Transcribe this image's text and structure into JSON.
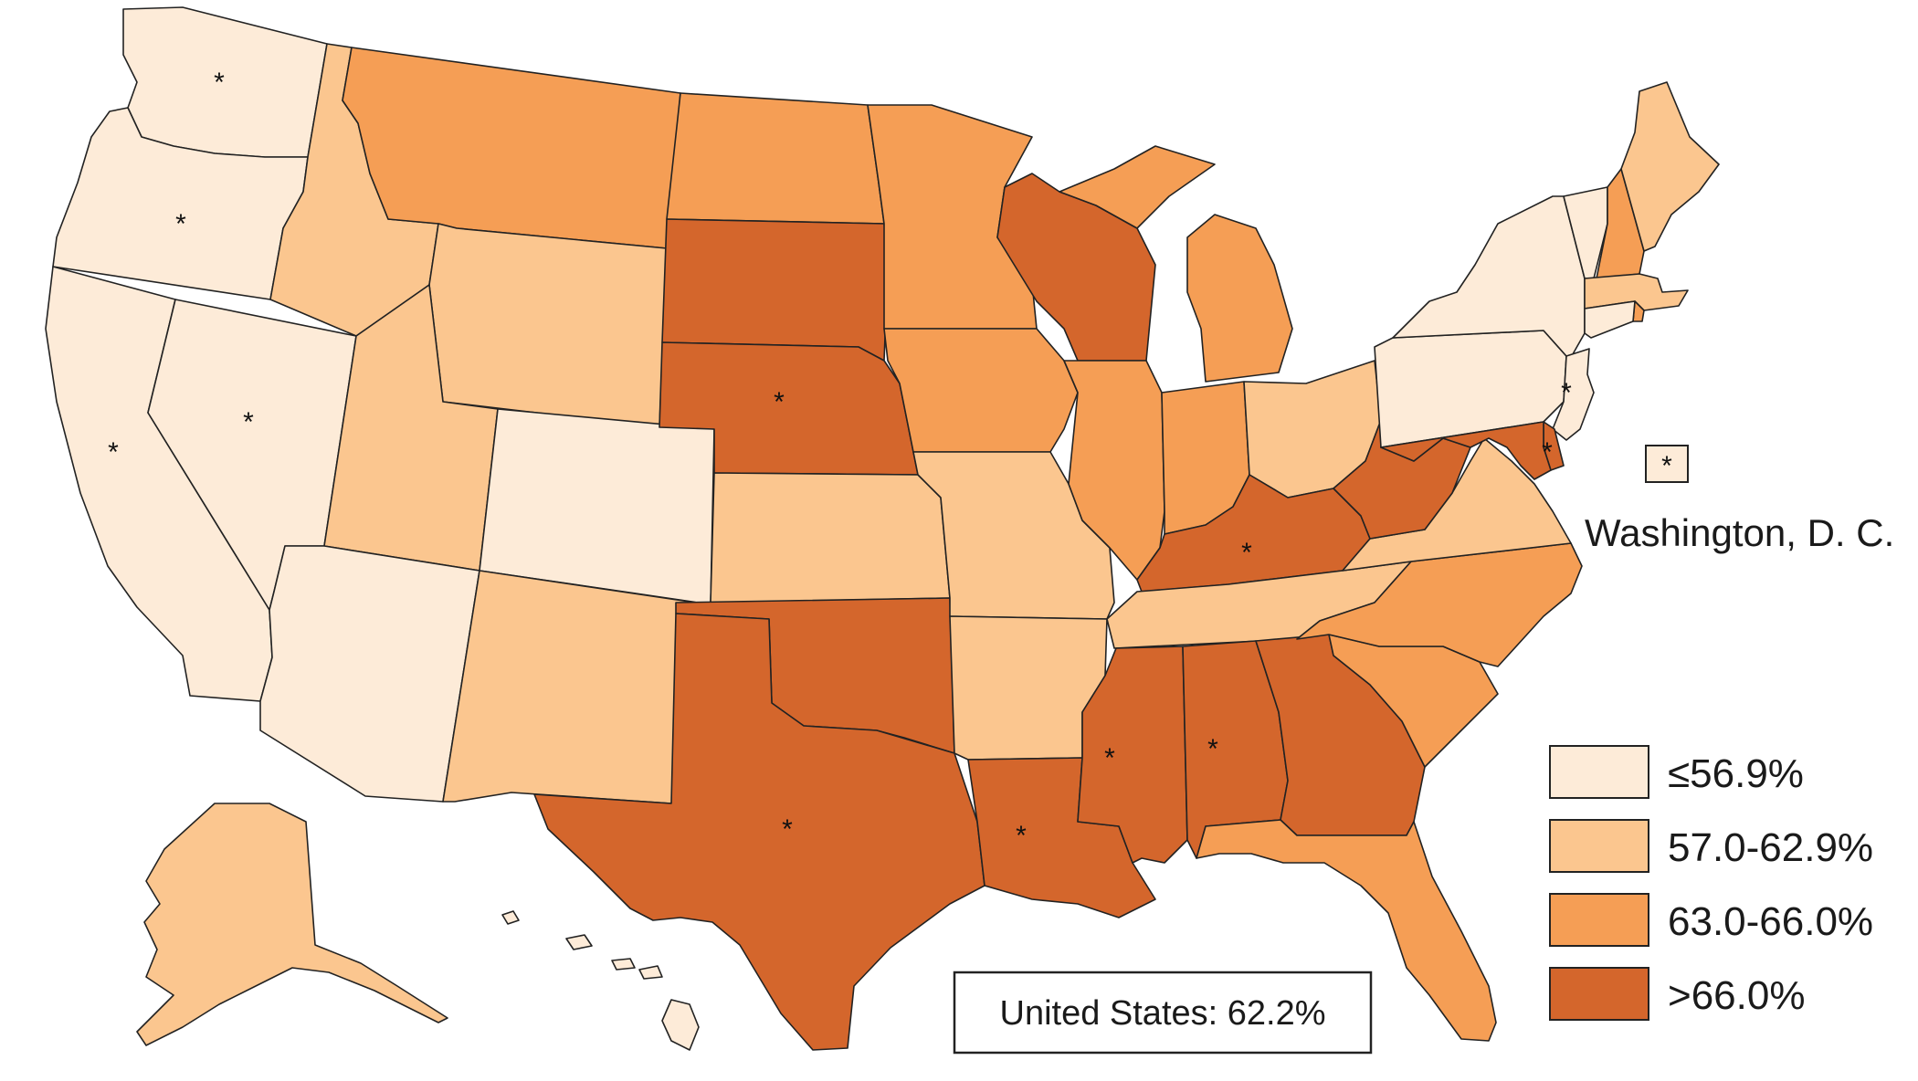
{
  "legend": {
    "bins": [
      {
        "label": "≤56.9%",
        "color": "#fdebd8"
      },
      {
        "label": "57.0-62.9%",
        "color": "#fbc68f"
      },
      {
        "label": "63.0-66.0%",
        "color": "#f59e55"
      },
      {
        "label": ">66.0%",
        "color": "#d4662c"
      }
    ]
  },
  "dc_label": "Washington, D. C.",
  "us_summary": "United States: 62.2%",
  "asterisk_symbol": "*",
  "states": [
    {
      "abbr": "WA",
      "bin": 0,
      "star": true
    },
    {
      "abbr": "OR",
      "bin": 0,
      "star": true
    },
    {
      "abbr": "CA",
      "bin": 0,
      "star": true
    },
    {
      "abbr": "NV",
      "bin": 0,
      "star": true
    },
    {
      "abbr": "ID",
      "bin": 1,
      "star": false
    },
    {
      "abbr": "MT",
      "bin": 2,
      "star": false
    },
    {
      "abbr": "WY",
      "bin": 1,
      "star": false
    },
    {
      "abbr": "UT",
      "bin": 1,
      "star": false
    },
    {
      "abbr": "AZ",
      "bin": 0,
      "star": false
    },
    {
      "abbr": "CO",
      "bin": 0,
      "star": false
    },
    {
      "abbr": "NM",
      "bin": 1,
      "star": false
    },
    {
      "abbr": "ND",
      "bin": 2,
      "star": false
    },
    {
      "abbr": "SD",
      "bin": 3,
      "star": false
    },
    {
      "abbr": "NE",
      "bin": 3,
      "star": true
    },
    {
      "abbr": "KS",
      "bin": 1,
      "star": false
    },
    {
      "abbr": "OK",
      "bin": 3,
      "star": false
    },
    {
      "abbr": "TX",
      "bin": 3,
      "star": true
    },
    {
      "abbr": "MN",
      "bin": 2,
      "star": false
    },
    {
      "abbr": "IA",
      "bin": 2,
      "star": false
    },
    {
      "abbr": "MO",
      "bin": 1,
      "star": false
    },
    {
      "abbr": "AR",
      "bin": 1,
      "star": false
    },
    {
      "abbr": "LA",
      "bin": 3,
      "star": true
    },
    {
      "abbr": "WI",
      "bin": 3,
      "star": false
    },
    {
      "abbr": "IL",
      "bin": 2,
      "star": false
    },
    {
      "abbr": "MI",
      "bin": 2,
      "star": false
    },
    {
      "abbr": "IN",
      "bin": 2,
      "star": false
    },
    {
      "abbr": "OH",
      "bin": 1,
      "star": false
    },
    {
      "abbr": "KY",
      "bin": 3,
      "star": true
    },
    {
      "abbr": "TN",
      "bin": 1,
      "star": false
    },
    {
      "abbr": "MS",
      "bin": 3,
      "star": true
    },
    {
      "abbr": "AL",
      "bin": 3,
      "star": true
    },
    {
      "abbr": "GA",
      "bin": 3,
      "star": false
    },
    {
      "abbr": "FL",
      "bin": 2,
      "star": false
    },
    {
      "abbr": "SC",
      "bin": 2,
      "star": false
    },
    {
      "abbr": "NC",
      "bin": 2,
      "star": false
    },
    {
      "abbr": "VA",
      "bin": 1,
      "star": false
    },
    {
      "abbr": "WV",
      "bin": 3,
      "star": false
    },
    {
      "abbr": "PA",
      "bin": 0,
      "star": false
    },
    {
      "abbr": "NY",
      "bin": 0,
      "star": false
    },
    {
      "abbr": "VT",
      "bin": 0,
      "star": false
    },
    {
      "abbr": "NH",
      "bin": 2,
      "star": false
    },
    {
      "abbr": "ME",
      "bin": 1,
      "star": false
    },
    {
      "abbr": "MA",
      "bin": 1,
      "star": false
    },
    {
      "abbr": "CT",
      "bin": 0,
      "star": false
    },
    {
      "abbr": "RI",
      "bin": 2,
      "star": false
    },
    {
      "abbr": "NJ",
      "bin": 0,
      "star": true
    },
    {
      "abbr": "DE",
      "bin": 3,
      "star": true
    },
    {
      "abbr": "MD",
      "bin": 3,
      "star": false
    },
    {
      "abbr": "AK",
      "bin": 1,
      "star": false
    },
    {
      "abbr": "HI",
      "bin": 0,
      "star": false
    },
    {
      "abbr": "DC",
      "bin": 0,
      "star": true
    }
  ]
}
